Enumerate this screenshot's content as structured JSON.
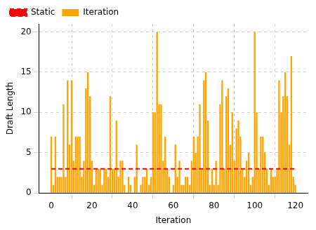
{
  "chart_data": {
    "type": "bar",
    "x_label": "Iteration",
    "y_label": "Draft Length",
    "x": [
      0,
      1,
      2,
      3,
      4,
      5,
      6,
      7,
      8,
      9,
      10,
      11,
      12,
      13,
      14,
      15,
      16,
      17,
      18,
      19,
      20,
      21,
      22,
      23,
      24,
      25,
      26,
      27,
      28,
      29,
      30,
      31,
      32,
      33,
      34,
      35,
      36,
      37,
      38,
      39,
      40,
      41,
      42,
      43,
      44,
      45,
      46,
      47,
      48,
      49,
      50,
      51,
      52,
      53,
      54,
      55,
      56,
      57,
      58,
      59,
      60,
      61,
      62,
      63,
      64,
      65,
      66,
      67,
      68,
      69,
      70,
      71,
      72,
      73,
      74,
      75,
      76,
      77,
      78,
      79,
      80,
      81,
      82,
      83,
      84,
      85,
      86,
      87,
      88,
      89,
      90,
      91,
      92,
      93,
      94,
      95,
      96,
      97,
      98,
      99,
      100,
      101,
      102,
      103,
      104,
      105,
      106,
      107,
      108,
      109,
      110,
      111,
      112,
      113,
      114,
      115,
      116,
      117,
      118,
      119,
      120
    ],
    "series": [
      {
        "name": "Static",
        "type": "line",
        "color": "#ff0000",
        "line_style": "dashed",
        "values": [
          3,
          3,
          3,
          3,
          3,
          3,
          3,
          3,
          3,
          3,
          3,
          3,
          3,
          3,
          3,
          3,
          3,
          3,
          3,
          3,
          3,
          3,
          3,
          3,
          3,
          3,
          3,
          3,
          3,
          3,
          3,
          3,
          3,
          3,
          3,
          3,
          3,
          3,
          3,
          3,
          3,
          3,
          3,
          3,
          3,
          3,
          3,
          3,
          3,
          3,
          3,
          3,
          3,
          3,
          3,
          3,
          3,
          3,
          3,
          3,
          3,
          3,
          3,
          3,
          3,
          3,
          3,
          3,
          3,
          3,
          3,
          3,
          3,
          3,
          3,
          3,
          3,
          3,
          3,
          3,
          3,
          3,
          3,
          3,
          3,
          3,
          3,
          3,
          3,
          3,
          3,
          3,
          3,
          3,
          3,
          3,
          3,
          3,
          3,
          3,
          3,
          3,
          3,
          3,
          3,
          3,
          3,
          3,
          3,
          3,
          3,
          3,
          3,
          3,
          3,
          3,
          3,
          3,
          3,
          3,
          3
        ]
      },
      {
        "name": "Iteration",
        "type": "bar",
        "color": "#ffa500",
        "values": [
          7,
          1,
          7,
          2,
          2,
          2,
          11,
          2,
          14,
          6,
          14,
          4,
          7,
          7,
          7,
          2,
          4,
          13,
          15,
          12,
          4,
          1,
          3,
          3,
          3,
          1,
          3,
          3,
          2,
          12,
          3,
          3,
          9,
          2,
          4,
          4,
          1,
          0,
          2,
          1,
          0,
          2,
          6,
          0,
          1,
          2,
          2,
          3,
          1,
          2,
          10,
          10,
          20,
          11,
          11,
          4,
          7,
          3,
          2,
          0,
          1,
          6,
          2,
          4,
          1,
          1,
          2,
          2,
          1,
          4,
          7,
          5,
          7,
          11,
          3,
          14,
          15,
          9,
          1,
          3,
          1,
          4,
          1,
          11,
          14,
          3,
          12,
          13,
          6,
          10,
          4,
          8,
          9,
          7,
          3,
          2,
          4,
          5,
          1,
          2,
          20,
          10,
          3,
          7,
          7,
          5,
          3,
          1,
          3,
          2,
          2,
          3,
          14,
          10,
          12,
          15,
          12,
          6,
          17,
          2,
          1
        ]
      }
    ],
    "xlim": [
      -6,
      126
    ],
    "xticks": [
      0,
      20,
      40,
      60,
      80,
      100,
      120
    ],
    "ylim": [
      0,
      21
    ],
    "yticks": [
      0,
      5,
      10,
      15,
      20
    ],
    "grid": true,
    "legend": "upper left"
  }
}
